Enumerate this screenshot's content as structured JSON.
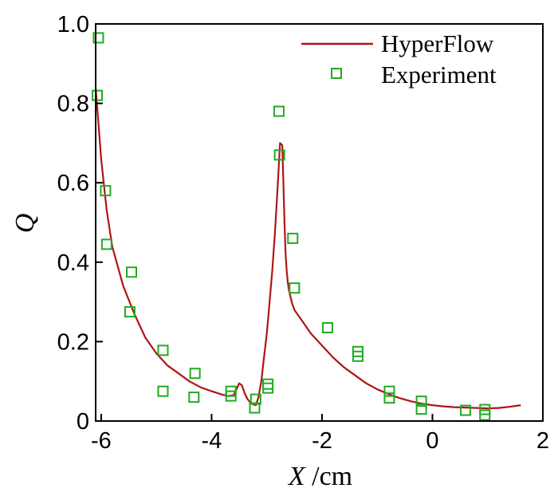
{
  "chart_data": {
    "type": "line",
    "x_label_var": "X",
    "x_label_unit": " /cm",
    "ylabel": "Q",
    "xlim": [
      -6.1,
      2.0
    ],
    "ylim": [
      0,
      1.0
    ],
    "x_ticks": [
      -6,
      -4,
      -2,
      0,
      2
    ],
    "x_tick_labels": [
      "-6",
      "-4",
      "-2",
      "0",
      "2"
    ],
    "y_ticks": [
      0,
      0.2,
      0.4,
      0.6,
      0.8,
      1.0
    ],
    "y_tick_labels": [
      "0",
      "0.2",
      "0.4",
      "0.6",
      "0.8",
      "1.0"
    ],
    "legend_position": "top-right",
    "series": [
      {
        "name": "HyperFlow",
        "kind": "line",
        "color": "#b01515",
        "x": [
          -6.1,
          -6.05,
          -6.0,
          -5.9,
          -5.8,
          -5.6,
          -5.4,
          -5.2,
          -5.0,
          -4.8,
          -4.6,
          -4.4,
          -4.2,
          -4.0,
          -3.8,
          -3.7,
          -3.6,
          -3.55,
          -3.5,
          -3.45,
          -3.4,
          -3.35,
          -3.3,
          -3.25,
          -3.2,
          -3.15,
          -3.1,
          -3.05,
          -3.0,
          -2.95,
          -2.9,
          -2.85,
          -2.8,
          -2.76,
          -2.72,
          -2.7,
          -2.68,
          -2.66,
          -2.64,
          -2.62,
          -2.6,
          -2.55,
          -2.5,
          -2.4,
          -2.2,
          -2.0,
          -1.8,
          -1.6,
          -1.4,
          -1.2,
          -1.0,
          -0.8,
          -0.6,
          -0.4,
          -0.2,
          0.0,
          0.2,
          0.4,
          0.6,
          0.8,
          1.0,
          1.2,
          1.4,
          1.6
        ],
        "y": [
          0.84,
          0.75,
          0.66,
          0.53,
          0.44,
          0.34,
          0.27,
          0.21,
          0.17,
          0.14,
          0.12,
          0.1,
          0.085,
          0.075,
          0.066,
          0.063,
          0.065,
          0.08,
          0.095,
          0.09,
          0.07,
          0.055,
          0.047,
          0.042,
          0.04,
          0.06,
          0.1,
          0.16,
          0.22,
          0.3,
          0.38,
          0.48,
          0.6,
          0.7,
          0.695,
          0.6,
          0.5,
          0.42,
          0.38,
          0.35,
          0.33,
          0.3,
          0.28,
          0.26,
          0.22,
          0.19,
          0.16,
          0.135,
          0.115,
          0.095,
          0.08,
          0.068,
          0.058,
          0.05,
          0.044,
          0.04,
          0.037,
          0.035,
          0.034,
          0.033,
          0.032,
          0.033,
          0.036,
          0.04
        ]
      },
      {
        "name": "Experiment",
        "kind": "scatter",
        "color": "#22aa22",
        "x": [
          -6.05,
          -6.07,
          -5.92,
          -5.9,
          -5.45,
          -5.48,
          -4.88,
          -4.88,
          -4.3,
          -4.32,
          -3.65,
          -3.65,
          -3.2,
          -3.22,
          -2.98,
          -2.98,
          -2.78,
          -2.77,
          -2.53,
          -2.5,
          -1.9,
          -1.35,
          -1.35,
          -0.78,
          -0.78,
          -0.2,
          -0.2,
          0.6,
          0.95,
          0.95
        ],
        "y": [
          0.965,
          0.82,
          0.58,
          0.445,
          0.375,
          0.275,
          0.178,
          0.075,
          0.12,
          0.06,
          0.075,
          0.063,
          0.055,
          0.033,
          0.093,
          0.083,
          0.78,
          0.67,
          0.46,
          0.335,
          0.235,
          0.175,
          0.163,
          0.075,
          0.058,
          0.05,
          0.03,
          0.027,
          0.029,
          0.015
        ]
      }
    ]
  }
}
